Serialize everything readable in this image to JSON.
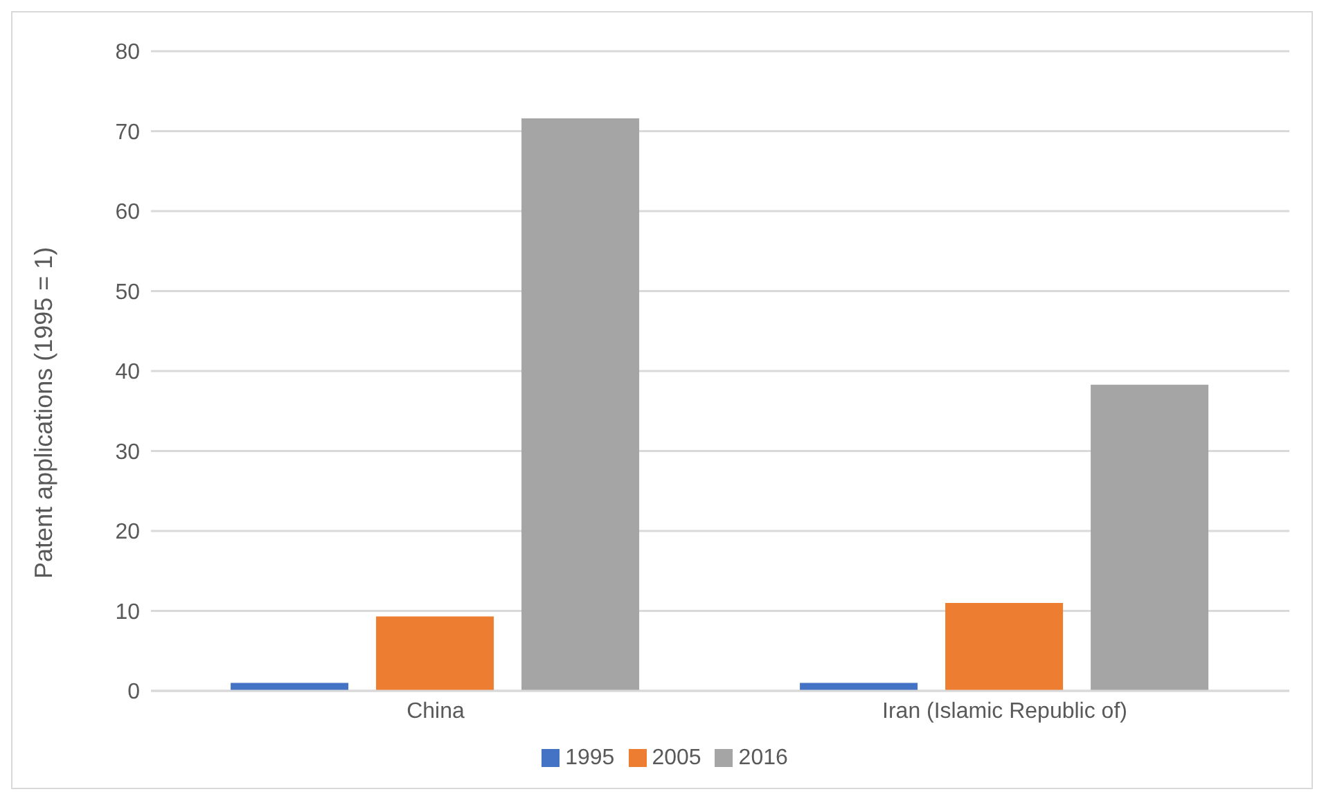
{
  "chart_data": {
    "type": "bar",
    "ylabel": "Patent applications (1995 = 1)",
    "categories": [
      "China",
      "Iran (Islamic Republic of)"
    ],
    "series": [
      {
        "name": "1995",
        "color": "#4472c4",
        "values": [
          1,
          1
        ]
      },
      {
        "name": "2005",
        "color": "#ed7d31",
        "values": [
          9.3,
          11
        ]
      },
      {
        "name": "2016",
        "color": "#a5a5a5",
        "values": [
          71.6,
          38.3
        ]
      }
    ],
    "ylim": [
      0,
      80
    ],
    "yticks": [
      0,
      10,
      20,
      30,
      40,
      50,
      60,
      70,
      80
    ],
    "grid": "y",
    "legend": "bottom"
  }
}
